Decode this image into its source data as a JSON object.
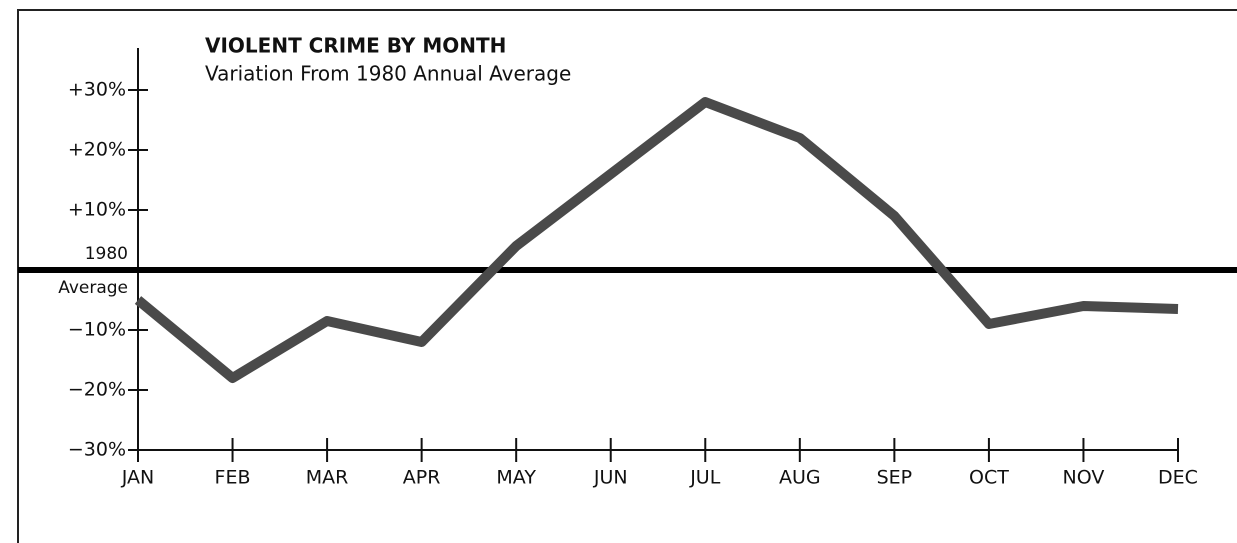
{
  "chart_data": {
    "type": "line",
    "title": "VIOLENT CRIME BY MONTH",
    "subtitle": "Variation From 1980 Annual Average",
    "categories": [
      "JAN",
      "FEB",
      "MAR",
      "APR",
      "MAY",
      "JUN",
      "JUL",
      "AUG",
      "SEP",
      "OCT",
      "NOV",
      "DEC"
    ],
    "values": [
      -5,
      -18,
      -8.5,
      -12,
      4,
      16,
      28,
      22,
      9,
      -9,
      -6,
      -6.5
    ],
    "color": "#4a4a4a",
    "ylim": [
      -30,
      37
    ],
    "yticks": [
      {
        "value": 30,
        "label": "+30%"
      },
      {
        "value": 20,
        "label": "+20%"
      },
      {
        "value": 10,
        "label": "+10%"
      },
      {
        "value": -10,
        "label": "−10%"
      },
      {
        "value": -20,
        "label": "−20%"
      },
      {
        "value": -30,
        "label": "−30%"
      }
    ],
    "reference_line": {
      "value": 0,
      "label_top": "1980",
      "label_bottom": "Average"
    }
  }
}
